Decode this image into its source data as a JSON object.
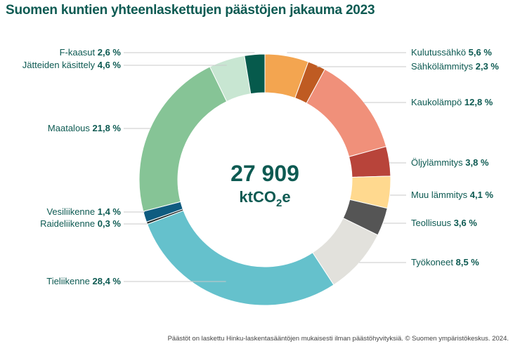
{
  "chart_data": {
    "type": "pie",
    "style": "donut",
    "title": "Suomen kuntien yhteenlaskettujen päästöjen jakauma 2023",
    "center": {
      "value": "27 909",
      "unit_main": "ktCO",
      "unit_sub": "2",
      "unit_end": "e"
    },
    "slices": [
      {
        "label": "Kulutussähkö",
        "pct_text": "5,6 %",
        "value": 5.6,
        "color": "#f3a550"
      },
      {
        "label": "Sähkölämmitys",
        "pct_text": "2,3 %",
        "value": 2.3,
        "color": "#bf5b22"
      },
      {
        "label": "Kaukolämpö",
        "pct_text": "12,8 %",
        "value": 12.8,
        "color": "#f0907a"
      },
      {
        "label": "Öljylämmitys",
        "pct_text": "3,8 %",
        "value": 3.8,
        "color": "#b8443a"
      },
      {
        "label": "Muu lämmitys",
        "pct_text": "4,1 %",
        "value": 4.1,
        "color": "#ffd98f"
      },
      {
        "label": "Teollisuus",
        "pct_text": "3,6 %",
        "value": 3.6,
        "color": "#555555"
      },
      {
        "label": "Työkoneet",
        "pct_text": "8,5 %",
        "value": 8.5,
        "color": "#e2e1dc"
      },
      {
        "label": "Tieliikenne",
        "pct_text": "28,4 %",
        "value": 28.4,
        "color": "#65c1cc"
      },
      {
        "label": "Raideliikenne",
        "pct_text": "0,3 %",
        "value": 0.3,
        "color": "#1f2a2a"
      },
      {
        "label": "Vesiliikenne",
        "pct_text": "1,4 %",
        "value": 1.4,
        "color": "#0f5c80"
      },
      {
        "label": "Maatalous",
        "pct_text": "21,8 %",
        "value": 21.8,
        "color": "#86c496"
      },
      {
        "label": "Jätteiden käsittely",
        "pct_text": "4,6 %",
        "value": 4.6,
        "color": "#c8e6d2"
      },
      {
        "label": "F-kaasut",
        "pct_text": "2,6 %",
        "value": 2.6,
        "color": "#065a4c"
      }
    ]
  },
  "footnote": "Päästöt on laskettu Hinku-laskentasääntöjen mukaisesti ilman päästöhyvityksiä. © Suomen ympäristökeskus. 2024."
}
